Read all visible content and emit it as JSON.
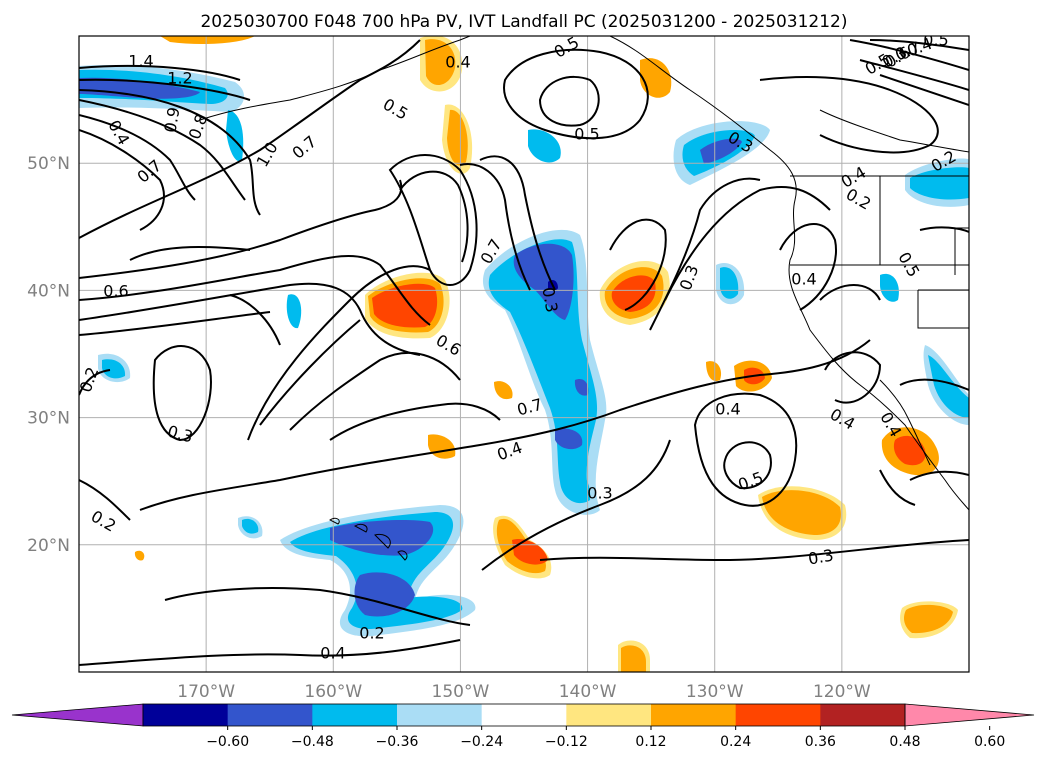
{
  "title": "2025030700 F048 700 hPa PV, IVT Landfall PC (2025031200 - 2025031212)",
  "map": {
    "lon_range": [
      -180,
      -110
    ],
    "lat_range": [
      10,
      60
    ],
    "lon_ticks": [
      {
        "lon": -170,
        "label": "170°W"
      },
      {
        "lon": -160,
        "label": "160°W"
      },
      {
        "lon": -150,
        "label": "150°W"
      },
      {
        "lon": -140,
        "label": "140°W"
      },
      {
        "lon": -130,
        "label": "130°W"
      },
      {
        "lon": -120,
        "label": "120°W"
      }
    ],
    "lat_ticks": [
      {
        "lat": 50,
        "label": "50°N"
      },
      {
        "lat": 40,
        "label": "40°N"
      },
      {
        "lat": 30,
        "label": "30°N"
      },
      {
        "lat": 20,
        "label": "20°N"
      }
    ],
    "grid": true,
    "contour_labels": [
      "1.4",
      "1.2",
      "0.4",
      "0.8",
      "0.9",
      "1.0",
      "0.7",
      "0.7",
      "0.6",
      "0.2",
      "0.3",
      "0.2",
      "0.5",
      "0.6",
      "0.7",
      "0.7",
      "0.4",
      "0.3",
      "0.3",
      "0.2",
      "0.4",
      "0.5",
      "0.5",
      "0.3",
      "0.2",
      "0.4",
      "0.5",
      "0.4",
      "0.3",
      "0.4",
      "0.5",
      "0.4",
      "0.3",
      "0.4",
      "0.2",
      "0.4",
      "0.5",
      "0.7",
      "0.5",
      "0.6",
      "0.4",
      "0.3"
    ]
  },
  "colorbar": {
    "colors": [
      "#9933cc",
      "#000099",
      "#3355cc",
      "#00bbee",
      "#aaddf5",
      "#ffffff",
      "#ffe680",
      "#ffa500",
      "#ff4500",
      "#b22222",
      "#ff88aa"
    ],
    "labels": [
      "−0.60",
      "−0.48",
      "−0.36",
      "−0.24",
      "−0.12",
      "0.12",
      "0.24",
      "0.36",
      "0.48",
      "0.60"
    ]
  }
}
